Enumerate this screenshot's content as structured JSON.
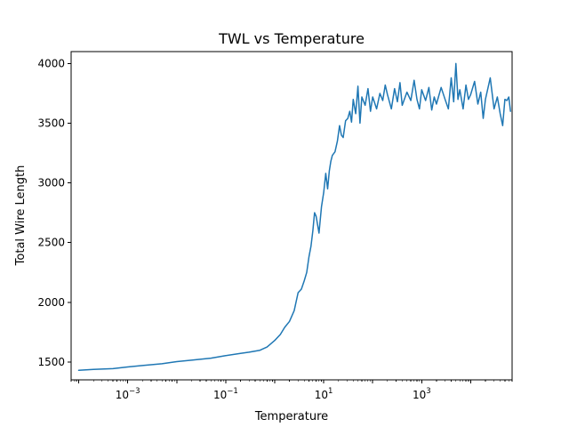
{
  "chart_data": {
    "type": "line",
    "title": "TWL vs Temperature",
    "xlabel": "Temperature",
    "ylabel": "Total Wire Length",
    "xscale": "log",
    "xlim": [
      7e-05,
      70000
    ],
    "ylim": [
      1350,
      4100
    ],
    "grid": false,
    "series_color": "#1f77b4",
    "x_ticks": [
      {
        "value": 0.001,
        "base": "10",
        "exp": "−3"
      },
      {
        "value": 0.1,
        "base": "10",
        "exp": "−1"
      },
      {
        "value": 10,
        "base": "10",
        "exp": "1"
      },
      {
        "value": 1000,
        "base": "10",
        "exp": "3"
      }
    ],
    "y_ticks": [
      {
        "value": 1500,
        "label": "1500"
      },
      {
        "value": 2000,
        "label": "2000"
      },
      {
        "value": 2500,
        "label": "2500"
      },
      {
        "value": 3000,
        "label": "3000"
      },
      {
        "value": 3500,
        "label": "3500"
      },
      {
        "value": 4000,
        "label": "4000"
      }
    ],
    "series": [
      {
        "name": "TWL",
        "x": [
          0.0001,
          0.0002,
          0.0005,
          0.001,
          0.002,
          0.005,
          0.01,
          0.02,
          0.05,
          0.1,
          0.2,
          0.3,
          0.5,
          0.7,
          1.0,
          1.3,
          1.6,
          2.0,
          2.5,
          3.0,
          3.5,
          4.0,
          4.5,
          5.0,
          5.5,
          6.0,
          6.5,
          7.0,
          8.0,
          9.0,
          10,
          11,
          12,
          13,
          14,
          15,
          17,
          19,
          21,
          23,
          25,
          28,
          31,
          34,
          37,
          40,
          45,
          50,
          55,
          60,
          70,
          80,
          90,
          100,
          120,
          140,
          160,
          180,
          200,
          240,
          280,
          320,
          360,
          400,
          500,
          600,
          700,
          800,
          900,
          1000,
          1200,
          1400,
          1600,
          1800,
          2000,
          2500,
          3000,
          3500,
          4000,
          4500,
          5000,
          5500,
          6000,
          7000,
          8000,
          9000,
          10000,
          12000,
          14000,
          16000,
          18000,
          20000,
          25000,
          30000,
          35000,
          40000,
          45000,
          50000,
          55000,
          60000,
          65000
        ],
        "y": [
          1430,
          1437,
          1444,
          1458,
          1470,
          1485,
          1503,
          1515,
          1532,
          1553,
          1572,
          1582,
          1598,
          1625,
          1680,
          1730,
          1790,
          1840,
          1930,
          2080,
          2110,
          2180,
          2250,
          2380,
          2470,
          2600,
          2750,
          2720,
          2580,
          2800,
          2920,
          3080,
          2950,
          3100,
          3180,
          3230,
          3260,
          3350,
          3480,
          3400,
          3380,
          3520,
          3540,
          3600,
          3510,
          3700,
          3580,
          3810,
          3500,
          3720,
          3650,
          3790,
          3600,
          3720,
          3620,
          3750,
          3690,
          3820,
          3740,
          3620,
          3790,
          3680,
          3840,
          3650,
          3760,
          3690,
          3860,
          3700,
          3620,
          3780,
          3690,
          3800,
          3610,
          3720,
          3660,
          3800,
          3700,
          3620,
          3880,
          3680,
          4000,
          3700,
          3780,
          3620,
          3820,
          3700,
          3740,
          3850,
          3660,
          3760,
          3540,
          3700,
          3880,
          3620,
          3720,
          3580,
          3480,
          3700,
          3690,
          3720,
          3600
        ]
      }
    ]
  }
}
